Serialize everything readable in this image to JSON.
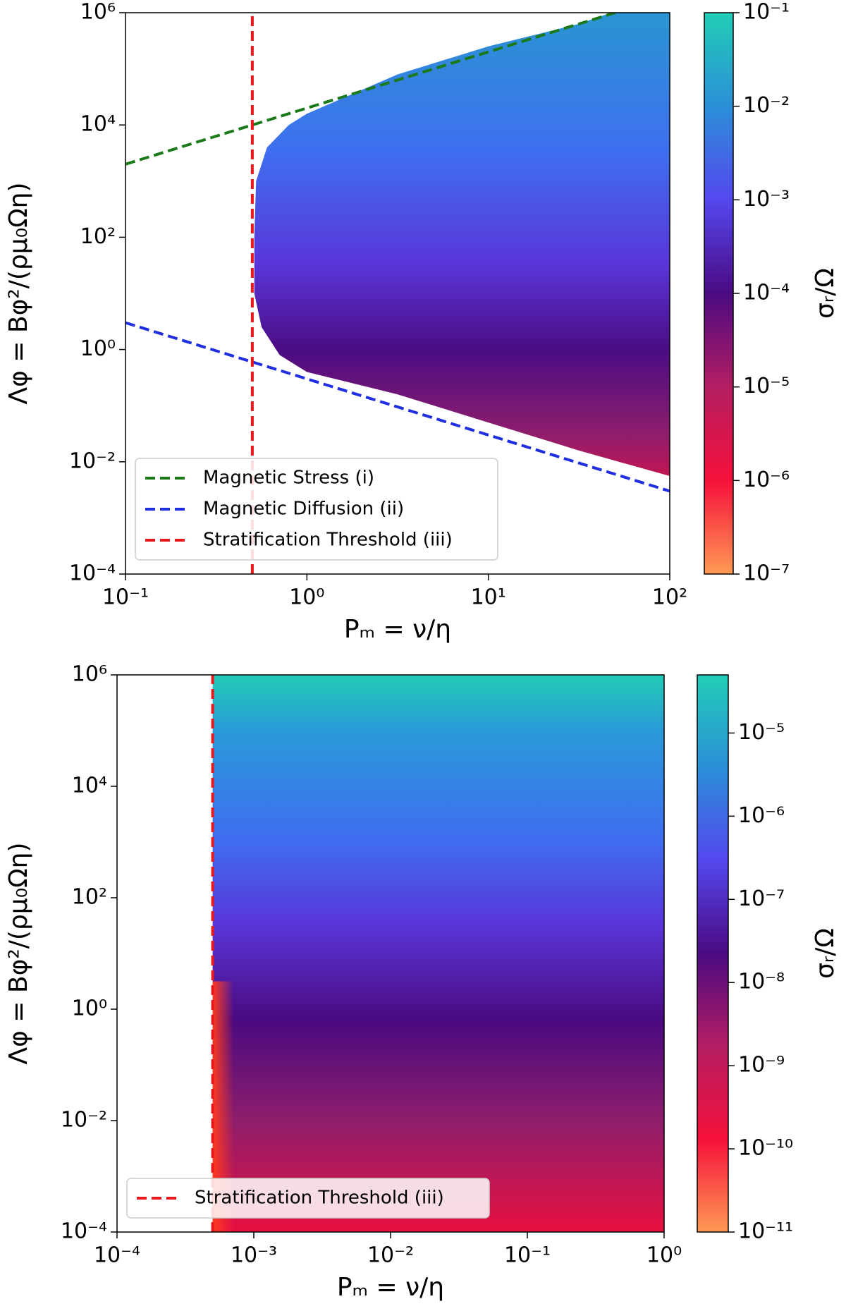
{
  "chart_data": [
    {
      "type": "line",
      "xscale": "log",
      "yscale": "log",
      "xlim": [
        0.1,
        100
      ],
      "ylim": [
        0.0001,
        1000000
      ],
      "xticks": [
        {
          "value": 0.1,
          "label": "10⁻¹"
        },
        {
          "value": 1,
          "label": "10⁰"
        },
        {
          "value": 10,
          "label": "10¹"
        },
        {
          "value": 100,
          "label": "10²"
        }
      ],
      "yticks": [
        {
          "value": 0.0001,
          "label": "10⁻⁴"
        },
        {
          "value": 0.01,
          "label": "10⁻²"
        },
        {
          "value": 1,
          "label": "10⁰"
        },
        {
          "value": 100,
          "label": "10²"
        },
        {
          "value": 10000,
          "label": "10⁴"
        },
        {
          "value": 1000000,
          "label": "10⁶"
        }
      ],
      "xlabel": "Pₘ = ν/η",
      "ylabel": "Λφ = Bφ²/(ρμ₀Ωη)",
      "legend": "lower left",
      "series": [
        {
          "name": "Magnetic Stress (i)",
          "color": "#1a7a1a",
          "x": [
            0.1,
            50
          ],
          "values": [
            2000,
            1000000
          ]
        },
        {
          "name": "Magnetic Diffusion (ii)",
          "color": "#1f2ee0",
          "x": [
            0.1,
            100
          ],
          "values": [
            3,
            0.003
          ]
        },
        {
          "name": "Stratification Threshold (iii)",
          "color": "#e8191c",
          "x": [
            0.5,
            0.5
          ],
          "values": [
            0.0001,
            1000000
          ]
        }
      ],
      "colorbar": {
        "label": "σᵣ/Ω",
        "scale": "log",
        "lim": [
          1e-07,
          0.1
        ],
        "ticks": [
          {
            "value": 1e-07,
            "label": "10⁻⁷"
          },
          {
            "value": 1e-06,
            "label": "10⁻⁶"
          },
          {
            "value": 1e-05,
            "label": "10⁻⁵"
          },
          {
            "value": 0.0001,
            "label": "10⁻⁴"
          },
          {
            "value": 0.001,
            "label": "10⁻³"
          },
          {
            "value": 0.01,
            "label": "10⁻²"
          },
          {
            "value": 0.1,
            "label": "10⁻¹"
          }
        ],
        "colormap": [
          "#ff9a55",
          "#f5103a",
          "#b41e62",
          "#4b0a82",
          "#5447ee",
          "#2b8fd8",
          "#22cdb6"
        ]
      }
    },
    {
      "type": "line",
      "xscale": "log",
      "yscale": "log",
      "xlim": [
        0.0001,
        1
      ],
      "ylim": [
        0.0001,
        1000000
      ],
      "xticks": [
        {
          "value": 0.0001,
          "label": "10⁻⁴"
        },
        {
          "value": 0.001,
          "label": "10⁻³"
        },
        {
          "value": 0.01,
          "label": "10⁻²"
        },
        {
          "value": 0.1,
          "label": "10⁻¹"
        },
        {
          "value": 1,
          "label": "10⁰"
        }
      ],
      "yticks": [
        {
          "value": 0.0001,
          "label": "10⁻⁴"
        },
        {
          "value": 0.01,
          "label": "10⁻²"
        },
        {
          "value": 1,
          "label": "10⁰"
        },
        {
          "value": 100,
          "label": "10²"
        },
        {
          "value": 10000,
          "label": "10⁴"
        },
        {
          "value": 1000000,
          "label": "10⁶"
        }
      ],
      "xlabel": "Pₘ = ν/η",
      "ylabel": "Λφ = Bφ²/(ρμ₀Ωη)",
      "legend": "lower left",
      "series": [
        {
          "name": "Stratification Threshold (iii)",
          "color": "#e8191c",
          "x": [
            0.0005,
            0.0005
          ],
          "values": [
            0.0001,
            1000000
          ]
        }
      ],
      "colorbar": {
        "label": "σᵣ/Ω",
        "scale": "log",
        "lim": [
          1e-11,
          5e-05
        ],
        "ticks": [
          {
            "value": 1e-11,
            "label": "10⁻¹¹"
          },
          {
            "value": 1e-10,
            "label": "10⁻¹⁰"
          },
          {
            "value": 1e-09,
            "label": "10⁻⁹"
          },
          {
            "value": 1e-08,
            "label": "10⁻⁸"
          },
          {
            "value": 1e-07,
            "label": "10⁻⁷"
          },
          {
            "value": 1e-06,
            "label": "10⁻⁶"
          },
          {
            "value": 1e-05,
            "label": "10⁻⁵"
          }
        ],
        "colormap": [
          "#ff9a55",
          "#f5103a",
          "#b41e62",
          "#4b0a82",
          "#5447ee",
          "#2b8fd8",
          "#22cdb6"
        ]
      }
    }
  ]
}
